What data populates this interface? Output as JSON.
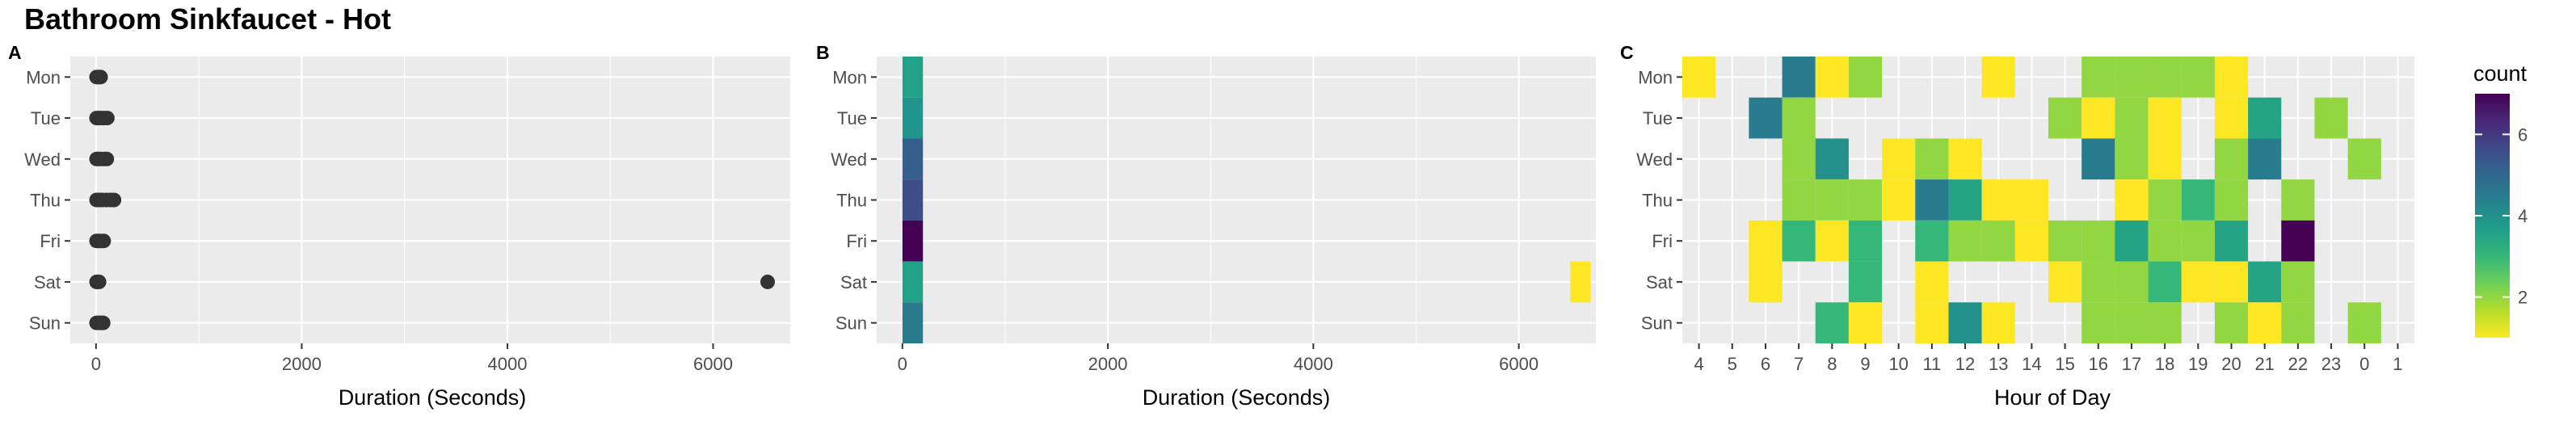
{
  "title": "Bathroom Sinkfaucet - Hot",
  "chart_data": [
    {
      "panel": "A",
      "type": "scatter",
      "xlabel": "Duration (Seconds)",
      "ylabel": "",
      "categories": [
        "Mon",
        "Tue",
        "Wed",
        "Thu",
        "Fri",
        "Sat",
        "Sun"
      ],
      "xticks": [
        0,
        2000,
        4000,
        6000
      ],
      "xlim": [
        -250,
        6750
      ],
      "grid": true,
      "points": [
        {
          "day": "Mon",
          "x": 5
        },
        {
          "day": "Mon",
          "x": 15
        },
        {
          "day": "Mon",
          "x": 30
        },
        {
          "day": "Mon",
          "x": 45
        },
        {
          "day": "Tue",
          "x": 5
        },
        {
          "day": "Tue",
          "x": 25
        },
        {
          "day": "Tue",
          "x": 50
        },
        {
          "day": "Tue",
          "x": 80
        },
        {
          "day": "Tue",
          "x": 110
        },
        {
          "day": "Wed",
          "x": 5
        },
        {
          "day": "Wed",
          "x": 25
        },
        {
          "day": "Wed",
          "x": 50
        },
        {
          "day": "Wed",
          "x": 80
        },
        {
          "day": "Wed",
          "x": 105
        },
        {
          "day": "Thu",
          "x": 5
        },
        {
          "day": "Thu",
          "x": 30
        },
        {
          "day": "Thu",
          "x": 60
        },
        {
          "day": "Thu",
          "x": 100
        },
        {
          "day": "Thu",
          "x": 140
        },
        {
          "day": "Thu",
          "x": 175
        },
        {
          "day": "Fri",
          "x": 5
        },
        {
          "day": "Fri",
          "x": 25
        },
        {
          "day": "Fri",
          "x": 50
        },
        {
          "day": "Fri",
          "x": 75
        },
        {
          "day": "Sat",
          "x": 5
        },
        {
          "day": "Sat",
          "x": 15
        },
        {
          "day": "Sat",
          "x": 30
        },
        {
          "day": "Sat",
          "x": 6530
        },
        {
          "day": "Sun",
          "x": 5
        },
        {
          "day": "Sun",
          "x": 25
        },
        {
          "day": "Sun",
          "x": 50
        },
        {
          "day": "Sun",
          "x": 70
        }
      ]
    },
    {
      "panel": "B",
      "type": "heatmap",
      "xlabel": "Duration (Seconds)",
      "ylabel": "",
      "categories": [
        "Mon",
        "Tue",
        "Wed",
        "Thu",
        "Fri",
        "Sat",
        "Sun"
      ],
      "xticks": [
        0,
        2000,
        4000,
        6000
      ],
      "xlim": [
        -250,
        6750
      ],
      "bin_width": 200,
      "cells": [
        {
          "day": "Mon",
          "x": 100,
          "count": 3.6
        },
        {
          "day": "Tue",
          "x": 100,
          "count": 3.9
        },
        {
          "day": "Wed",
          "x": 100,
          "count": 5.2
        },
        {
          "day": "Thu",
          "x": 100,
          "count": 5.6
        },
        {
          "day": "Fri",
          "x": 100,
          "count": 7.0
        },
        {
          "day": "Sat",
          "x": 100,
          "count": 3.6
        },
        {
          "day": "Sun",
          "x": 100,
          "count": 4.5
        },
        {
          "day": "Sat",
          "x": 6600,
          "count": 1.0
        }
      ]
    },
    {
      "panel": "C",
      "type": "heatmap",
      "xlabel": "Hour of Day",
      "ylabel": "",
      "categories": [
        "Mon",
        "Tue",
        "Wed",
        "Thu",
        "Fri",
        "Sat",
        "Sun"
      ],
      "hours": [
        "4",
        "5",
        "6",
        "7",
        "8",
        "9",
        "10",
        "11",
        "12",
        "13",
        "14",
        "15",
        "16",
        "17",
        "18",
        "19",
        "20",
        "21",
        "22",
        "23",
        "0",
        "1"
      ],
      "legend": {
        "title": "count",
        "ticks": [
          2,
          4,
          6
        ],
        "range": [
          1,
          7
        ],
        "placement": "right"
      },
      "cells": [
        {
          "day": "Mon",
          "hour": "4",
          "count": 1
        },
        {
          "day": "Mon",
          "hour": "7",
          "count": 4.5
        },
        {
          "day": "Mon",
          "hour": "8",
          "count": 1
        },
        {
          "day": "Mon",
          "hour": "9",
          "count": 2
        },
        {
          "day": "Mon",
          "hour": "13",
          "count": 1
        },
        {
          "day": "Mon",
          "hour": "16",
          "count": 2
        },
        {
          "day": "Mon",
          "hour": "17",
          "count": 2
        },
        {
          "day": "Mon",
          "hour": "18",
          "count": 2
        },
        {
          "day": "Mon",
          "hour": "19",
          "count": 2
        },
        {
          "day": "Mon",
          "hour": "20",
          "count": 1
        },
        {
          "day": "Tue",
          "hour": "6",
          "count": 4.5
        },
        {
          "day": "Tue",
          "hour": "7",
          "count": 2
        },
        {
          "day": "Tue",
          "hour": "15",
          "count": 2
        },
        {
          "day": "Tue",
          "hour": "16",
          "count": 1
        },
        {
          "day": "Tue",
          "hour": "17",
          "count": 2
        },
        {
          "day": "Tue",
          "hour": "18",
          "count": 1
        },
        {
          "day": "Tue",
          "hour": "20",
          "count": 1
        },
        {
          "day": "Tue",
          "hour": "21",
          "count": 3.5
        },
        {
          "day": "Tue",
          "hour": "23",
          "count": 2
        },
        {
          "day": "Wed",
          "hour": "7",
          "count": 2
        },
        {
          "day": "Wed",
          "hour": "8",
          "count": 4
        },
        {
          "day": "Wed",
          "hour": "10",
          "count": 1
        },
        {
          "day": "Wed",
          "hour": "11",
          "count": 2
        },
        {
          "day": "Wed",
          "hour": "12",
          "count": 1
        },
        {
          "day": "Wed",
          "hour": "16",
          "count": 4.5
        },
        {
          "day": "Wed",
          "hour": "17",
          "count": 2
        },
        {
          "day": "Wed",
          "hour": "18",
          "count": 1
        },
        {
          "day": "Wed",
          "hour": "20",
          "count": 2
        },
        {
          "day": "Wed",
          "hour": "21",
          "count": 4.5
        },
        {
          "day": "Wed",
          "hour": "0",
          "count": 2
        },
        {
          "day": "Thu",
          "hour": "7",
          "count": 2
        },
        {
          "day": "Thu",
          "hour": "8",
          "count": 2
        },
        {
          "day": "Thu",
          "hour": "9",
          "count": 2
        },
        {
          "day": "Thu",
          "hour": "10",
          "count": 1
        },
        {
          "day": "Thu",
          "hour": "11",
          "count": 4.5
        },
        {
          "day": "Thu",
          "hour": "12",
          "count": 3.5
        },
        {
          "day": "Thu",
          "hour": "13",
          "count": 1
        },
        {
          "day": "Thu",
          "hour": "14",
          "count": 1
        },
        {
          "day": "Thu",
          "hour": "17",
          "count": 1
        },
        {
          "day": "Thu",
          "hour": "18",
          "count": 2
        },
        {
          "day": "Thu",
          "hour": "19",
          "count": 3
        },
        {
          "day": "Thu",
          "hour": "20",
          "count": 2
        },
        {
          "day": "Thu",
          "hour": "22",
          "count": 2
        },
        {
          "day": "Fri",
          "hour": "6",
          "count": 1
        },
        {
          "day": "Fri",
          "hour": "7",
          "count": 3
        },
        {
          "day": "Fri",
          "hour": "8",
          "count": 1
        },
        {
          "day": "Fri",
          "hour": "9",
          "count": 3
        },
        {
          "day": "Fri",
          "hour": "11",
          "count": 3
        },
        {
          "day": "Fri",
          "hour": "12",
          "count": 2
        },
        {
          "day": "Fri",
          "hour": "13",
          "count": 2
        },
        {
          "day": "Fri",
          "hour": "14",
          "count": 1
        },
        {
          "day": "Fri",
          "hour": "15",
          "count": 2
        },
        {
          "day": "Fri",
          "hour": "16",
          "count": 2
        },
        {
          "day": "Fri",
          "hour": "17",
          "count": 3.5
        },
        {
          "day": "Fri",
          "hour": "18",
          "count": 2
        },
        {
          "day": "Fri",
          "hour": "19",
          "count": 2
        },
        {
          "day": "Fri",
          "hour": "20",
          "count": 3.5
        },
        {
          "day": "Fri",
          "hour": "22",
          "count": 7
        },
        {
          "day": "Sat",
          "hour": "6",
          "count": 1
        },
        {
          "day": "Sat",
          "hour": "9",
          "count": 3
        },
        {
          "day": "Sat",
          "hour": "11",
          "count": 1
        },
        {
          "day": "Sat",
          "hour": "15",
          "count": 1
        },
        {
          "day": "Sat",
          "hour": "16",
          "count": 2
        },
        {
          "day": "Sat",
          "hour": "17",
          "count": 2
        },
        {
          "day": "Sat",
          "hour": "18",
          "count": 3
        },
        {
          "day": "Sat",
          "hour": "19",
          "count": 1
        },
        {
          "day": "Sat",
          "hour": "20",
          "count": 1
        },
        {
          "day": "Sat",
          "hour": "21",
          "count": 3.5
        },
        {
          "day": "Sat",
          "hour": "22",
          "count": 2
        },
        {
          "day": "Sun",
          "hour": "8",
          "count": 3
        },
        {
          "day": "Sun",
          "hour": "9",
          "count": 1
        },
        {
          "day": "Sun",
          "hour": "11",
          "count": 1
        },
        {
          "day": "Sun",
          "hour": "12",
          "count": 4
        },
        {
          "day": "Sun",
          "hour": "13",
          "count": 1
        },
        {
          "day": "Sun",
          "hour": "16",
          "count": 2
        },
        {
          "day": "Sun",
          "hour": "17",
          "count": 2
        },
        {
          "day": "Sun",
          "hour": "18",
          "count": 2
        },
        {
          "day": "Sun",
          "hour": "20",
          "count": 2
        },
        {
          "day": "Sun",
          "hour": "21",
          "count": 1
        },
        {
          "day": "Sun",
          "hour": "22",
          "count": 2
        },
        {
          "day": "Sun",
          "hour": "0",
          "count": 2
        }
      ]
    }
  ],
  "colors": {
    "panel_background": "#ebebeb",
    "gridline": "#ffffff",
    "point": "#333333",
    "viridis": [
      "#fde725",
      "#b5de2b",
      "#6ece58",
      "#35b779",
      "#1f9e89",
      "#26828e",
      "#31688e",
      "#3e4989",
      "#482878",
      "#440154"
    ]
  }
}
